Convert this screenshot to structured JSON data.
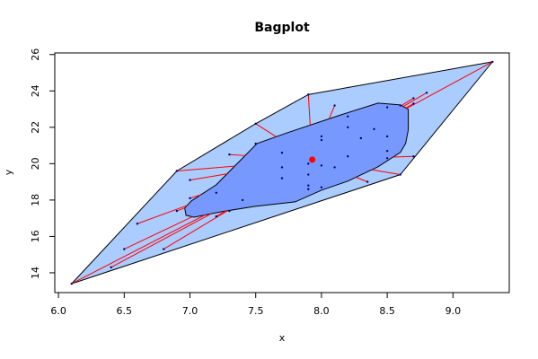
{
  "chart_data": {
    "type": "bagplot",
    "title": "Bagplot",
    "x_label": "x",
    "y_label": "y",
    "xlim": [
      5.972,
      9.428
    ],
    "ylim": [
      12.912,
      26.088
    ],
    "xticks": [
      {
        "value": 6,
        "label": "6.0"
      },
      6.5,
      {
        "value": 7,
        "label": "7.0"
      },
      7.5,
      {
        "value": 8,
        "label": "8.0"
      },
      8.5,
      {
        "value": 9,
        "label": "9.0"
      }
    ],
    "yticks": [
      14,
      16,
      18,
      20,
      22,
      24,
      26
    ],
    "points": {
      "color": "#000080",
      "x": [
        6.1,
        9.3,
        6.4,
        6.5,
        6.6,
        6.8,
        6.9,
        7.0,
        7.0,
        7.2,
        7.2,
        7.3,
        7.4,
        7.3,
        7.5,
        7.7,
        7.7,
        7.7,
        7.9,
        7.9,
        7.9,
        7.9,
        8.0,
        8.0,
        8.0,
        8.0,
        8.1,
        8.2,
        8.2,
        8.2,
        8.3,
        8.4,
        8.5,
        8.5,
        8.5,
        8.5,
        8.6,
        8.7,
        8.7,
        8.7,
        7.9,
        8.1,
        8.8,
        8.35,
        6.9,
        7.5,
        8.6
      ],
      "y": [
        13.4,
        25.6,
        14.3,
        15.3,
        16.7,
        15.3,
        17.4,
        18.1,
        19.1,
        18.4,
        17.1,
        17.4,
        18.0,
        20.5,
        21.1,
        20.6,
        19.8,
        19.2,
        20.0,
        18.8,
        18.6,
        19.4,
        21.5,
        21.3,
        19.9,
        18.7,
        19.8,
        22.6,
        22.0,
        20.4,
        21.4,
        21.9,
        23.1,
        21.5,
        20.7,
        20.3,
        23.2,
        23.6,
        23.3,
        20.4,
        23.8,
        23.2,
        23.9,
        19.0,
        19.6,
        22.2,
        19.4
      ]
    },
    "loop": {
      "color": "#aaccff",
      "x": [
        6.1,
        6.9,
        7.5,
        7.9,
        9.3,
        8.6
      ],
      "y": [
        13.4,
        19.6,
        22.2,
        23.8,
        25.6,
        19.4
      ]
    },
    "bag": {
      "color": "#7799ff",
      "x": [
        6.97,
        6.96,
        7.01,
        7.2,
        7.51,
        7.74,
        8.15,
        8.43,
        8.6,
        8.66,
        8.66,
        8.64,
        8.6,
        8.43,
        8.2,
        8.0,
        7.8,
        7.49,
        7.24,
        7.03
      ],
      "y": [
        17.16,
        17.56,
        17.95,
        18.84,
        21.11,
        21.7,
        22.69,
        23.33,
        23.23,
        22.99,
        21.85,
        21.11,
        20.62,
        19.83,
        19.04,
        18.54,
        17.9,
        17.65,
        17.36,
        17.06
      ]
    },
    "center": {
      "x": 7.93,
      "y": 20.22,
      "color": "#ff0000"
    },
    "whisker_color": "#ff0000"
  }
}
